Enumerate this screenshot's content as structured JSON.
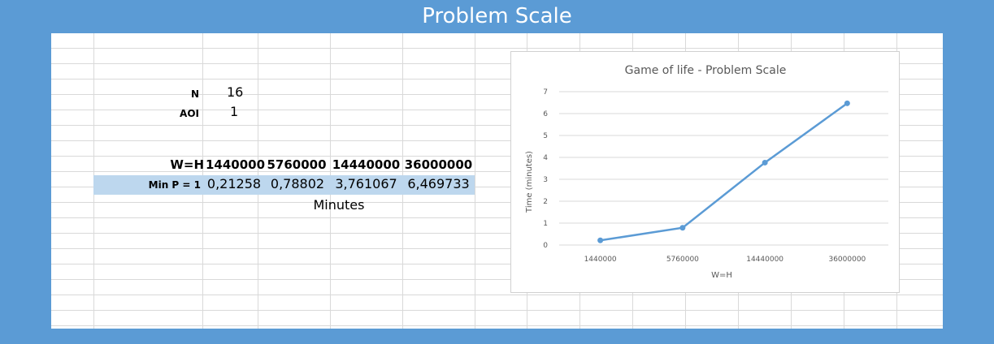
{
  "title": "Problem Scale",
  "params": {
    "n_label": "N",
    "n_value": "16",
    "aoi_label": "AOI",
    "aoi_value": "1"
  },
  "table": {
    "header_label": "W=H",
    "headers": [
      "1440000",
      "5760000",
      "14440000",
      "36000000"
    ],
    "row_label": "Min P = 1",
    "values": [
      "0,21258",
      "0,78802",
      "3,761067",
      "6,469733"
    ],
    "unit": "Minutes"
  },
  "colors": {
    "background": "#5b9bd5",
    "highlight": "#bdd7ee",
    "series": "#5b9bd5"
  },
  "chart_data": {
    "type": "line",
    "title": "Game of life - Problem Scale",
    "xlabel": "W=H",
    "ylabel": "Time (minutes)",
    "categories": [
      "1440000",
      "5760000",
      "14440000",
      "36000000"
    ],
    "values": [
      0.21258,
      0.78802,
      3.761067,
      6.469733
    ],
    "ylim": [
      0,
      7
    ],
    "yticks": [
      "0",
      "1",
      "2",
      "3",
      "4",
      "5",
      "6",
      "7"
    ],
    "grid": true
  }
}
